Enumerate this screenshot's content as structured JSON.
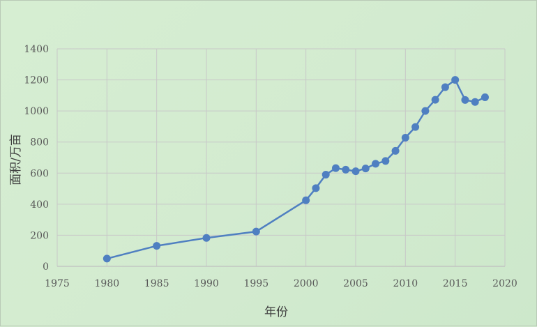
{
  "chart_data": {
    "type": "scatter",
    "xlabel": "年份",
    "ylabel": "面积/万亩",
    "xlim": [
      1975,
      2020
    ],
    "ylim": [
      0,
      1400
    ],
    "xticks": [
      1975,
      1980,
      1985,
      1990,
      1995,
      2000,
      2005,
      2010,
      2015,
      2020
    ],
    "yticks": [
      0,
      200,
      400,
      600,
      800,
      1000,
      1200,
      1400
    ],
    "grid": true,
    "line_connected": true,
    "colors": {
      "series": "#4f7fc1",
      "grid": "#c8c8c8",
      "background": "#d3ecd0"
    },
    "series": [
      {
        "x": [
          1980,
          1985,
          1990,
          1995,
          2000,
          2001,
          2002,
          2003,
          2004,
          2005,
          2006,
          2007,
          2008,
          2009,
          2010,
          2011,
          2012,
          2013,
          2014,
          2015,
          2016,
          2017,
          2018
        ],
        "y": [
          50,
          132,
          183,
          224,
          425,
          503,
          590,
          632,
          622,
          612,
          630,
          660,
          678,
          743,
          828,
          897,
          1000,
          1072,
          1153,
          1200,
          1071,
          1058,
          1088
        ]
      }
    ]
  }
}
